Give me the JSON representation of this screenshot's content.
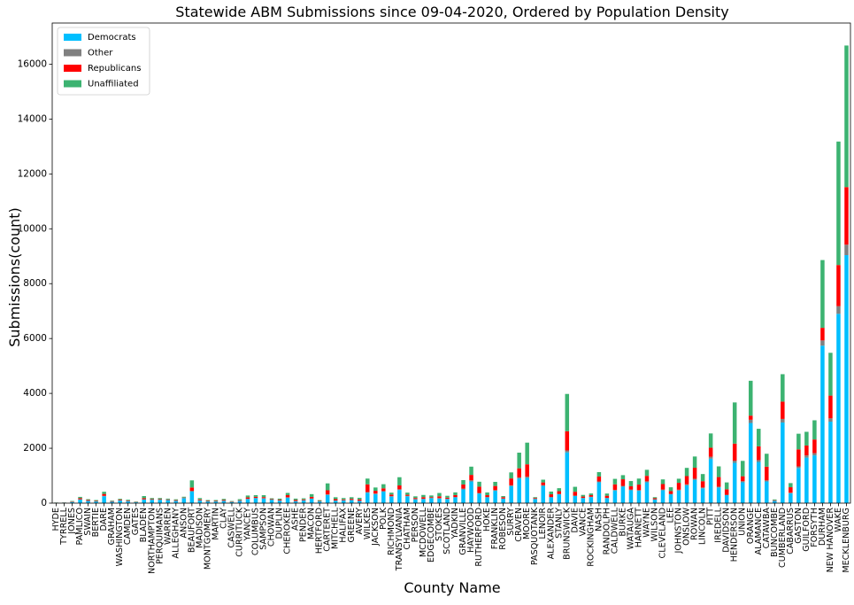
{
  "chart_data": {
    "type": "bar",
    "stacked": true,
    "title": "Statewide ABM Submissions since 09-04-2020, Ordered by Population Density",
    "xlabel": "County Name",
    "ylabel": "Submissions(count)",
    "ylim": [
      0,
      17500
    ],
    "yticks": [
      0,
      2000,
      4000,
      6000,
      8000,
      10000,
      12000,
      14000,
      16000
    ],
    "grid": false,
    "legend_placement": "top-left",
    "categories": [
      "HYDE",
      "TYRRELL",
      "JONES",
      "PAMLICO",
      "SWAIN",
      "BERTIE",
      "DARE",
      "GRAHAM",
      "WASHINGTON",
      "CAMDEN",
      "GATES",
      "BLADEN",
      "NORTHAMPTON",
      "PERQUIMANS",
      "WARREN",
      "ALLEGHANY",
      "ANSON",
      "BEAUFORT",
      "MADISON",
      "MONTGOMERY",
      "MARTIN",
      "CLAY",
      "CASWELL",
      "CURRITUCK",
      "YANCEY",
      "COLUMBUS",
      "SAMPSON",
      "CHOWAN",
      "DUPLIN",
      "CHEROKEE",
      "ASHE",
      "PENDER",
      "MACON",
      "HERTFORD",
      "CARTERET",
      "MITCHELL",
      "HALIFAX",
      "GREENE",
      "AVERY",
      "WILKES",
      "JACKSON",
      "POLK",
      "RICHMOND",
      "TRANSYLVANIA",
      "CHATHAM",
      "PERSON",
      "MCDOWELL",
      "EDGECOMBE",
      "STOKES",
      "SCOTLAND",
      "YADKIN",
      "GRANVILLE",
      "HAYWOOD",
      "RUTHERFORD",
      "HOKE",
      "FRANKLIN",
      "ROBESON",
      "SURRY",
      "CRAVEN",
      "MOORE",
      "PASQUOTANK",
      "LENOIR",
      "ALEXANDER",
      "STANLY",
      "BRUNSWICK",
      "DAVIE",
      "VANCE",
      "ROCKINGHAM",
      "NASH",
      "RANDOLPH",
      "CALDWELL",
      "BURKE",
      "WATAUGA",
      "HARNETT",
      "WAYNE",
      "WILSON",
      "CLEVELAND",
      "LEE",
      "JOHNSTON",
      "ONSLOW",
      "ROWAN",
      "LINCOLN",
      "PITT",
      "IREDELL",
      "DAVIDSON",
      "HENDERSON",
      "UNION",
      "ORANGE",
      "ALAMANCE",
      "CATAWBA",
      "BUNCOMBE",
      "CUMBERLAND",
      "CABARRUS",
      "GASTON",
      "GUILFORD",
      "FORSYTH",
      "DURHAM",
      "NEW HANOVER",
      "WAKE",
      "MECKLENBURG"
    ],
    "series": [
      {
        "name": "Democrats",
        "color": "#00bfff",
        "values": [
          10,
          15,
          40,
          130,
          80,
          60,
          250,
          50,
          100,
          70,
          30,
          130,
          120,
          120,
          110,
          80,
          180,
          420,
          100,
          60,
          60,
          80,
          40,
          80,
          150,
          180,
          170,
          120,
          90,
          200,
          70,
          100,
          160,
          60,
          300,
          90,
          100,
          110,
          80,
          380,
          330,
          420,
          240,
          480,
          250,
          140,
          150,
          180,
          170,
          150,
          210,
          500,
          790,
          350,
          210,
          450,
          160,
          620,
          900,
          920,
          150,
          630,
          210,
          320,
          1850,
          260,
          180,
          220,
          760,
          180,
          460,
          600,
          470,
          450,
          760,
          130,
          470,
          320,
          460,
          650,
          850,
          540,
          1620,
          570,
          290,
          1470,
          760,
          2920,
          1500,
          790,
          80,
          2940,
          360,
          1280,
          1660,
          1740,
          5740,
          2970,
          6900,
          9040
        ]
      },
      {
        "name": "Other",
        "color": "#808080",
        "values": [
          2,
          1,
          3,
          8,
          4,
          3,
          15,
          3,
          5,
          4,
          2,
          8,
          6,
          6,
          5,
          4,
          8,
          30,
          5,
          3,
          3,
          5,
          2,
          5,
          8,
          10,
          10,
          6,
          5,
          12,
          5,
          6,
          8,
          4,
          20,
          5,
          6,
          6,
          5,
          25,
          20,
          20,
          12,
          25,
          14,
          8,
          8,
          10,
          10,
          8,
          12,
          30,
          40,
          20,
          10,
          25,
          8,
          30,
          40,
          45,
          8,
          25,
          12,
          15,
          70,
          15,
          10,
          12,
          30,
          10,
          25,
          30,
          25,
          25,
          35,
          8,
          25,
          18,
          30,
          35,
          40,
          30,
          70,
          30,
          15,
          80,
          40,
          120,
          70,
          40,
          5,
          130,
          20,
          60,
          80,
          80,
          190,
          120,
          280,
          380
        ]
      },
      {
        "name": "Republicans",
        "color": "#ff0000",
        "values": [
          5,
          4,
          15,
          40,
          30,
          20,
          70,
          20,
          25,
          20,
          10,
          40,
          20,
          20,
          20,
          25,
          15,
          120,
          30,
          20,
          20,
          30,
          15,
          20,
          50,
          40,
          40,
          20,
          30,
          80,
          40,
          30,
          60,
          15,
          150,
          50,
          30,
          40,
          50,
          280,
          100,
          100,
          60,
          140,
          40,
          40,
          60,
          30,
          70,
          40,
          70,
          150,
          200,
          230,
          70,
          150,
          50,
          250,
          330,
          450,
          30,
          100,
          100,
          100,
          700,
          140,
          50,
          60,
          180,
          80,
          200,
          240,
          120,
          200,
          200,
          40,
          200,
          100,
          250,
          300,
          400,
          230,
          330,
          350,
          200,
          620,
          180,
          150,
          500,
          500,
          20,
          630,
          200,
          620,
          360,
          500,
          460,
          830,
          1500,
          2100
        ]
      },
      {
        "name": "Unaffiliated",
        "color": "#3cb371",
        "values": [
          5,
          5,
          20,
          50,
          30,
          30,
          80,
          20,
          30,
          30,
          15,
          80,
          40,
          40,
          30,
          30,
          30,
          260,
          50,
          30,
          30,
          40,
          20,
          40,
          70,
          60,
          70,
          30,
          40,
          80,
          50,
          40,
          100,
          30,
          250,
          70,
          50,
          60,
          60,
          210,
          120,
          150,
          70,
          300,
          80,
          60,
          80,
          60,
          120,
          70,
          100,
          160,
          300,
          180,
          100,
          150,
          40,
          220,
          570,
          790,
          30,
          100,
          100,
          110,
          1360,
          180,
          60,
          60,
          160,
          80,
          200,
          150,
          190,
          220,
          220,
          40,
          170,
          140,
          150,
          300,
          410,
          260,
          520,
          390,
          250,
          1500,
          560,
          1270,
          640,
          470,
          30,
          1000,
          150,
          570,
          500,
          700,
          2470,
          1560,
          4500,
          5160
        ]
      }
    ]
  }
}
